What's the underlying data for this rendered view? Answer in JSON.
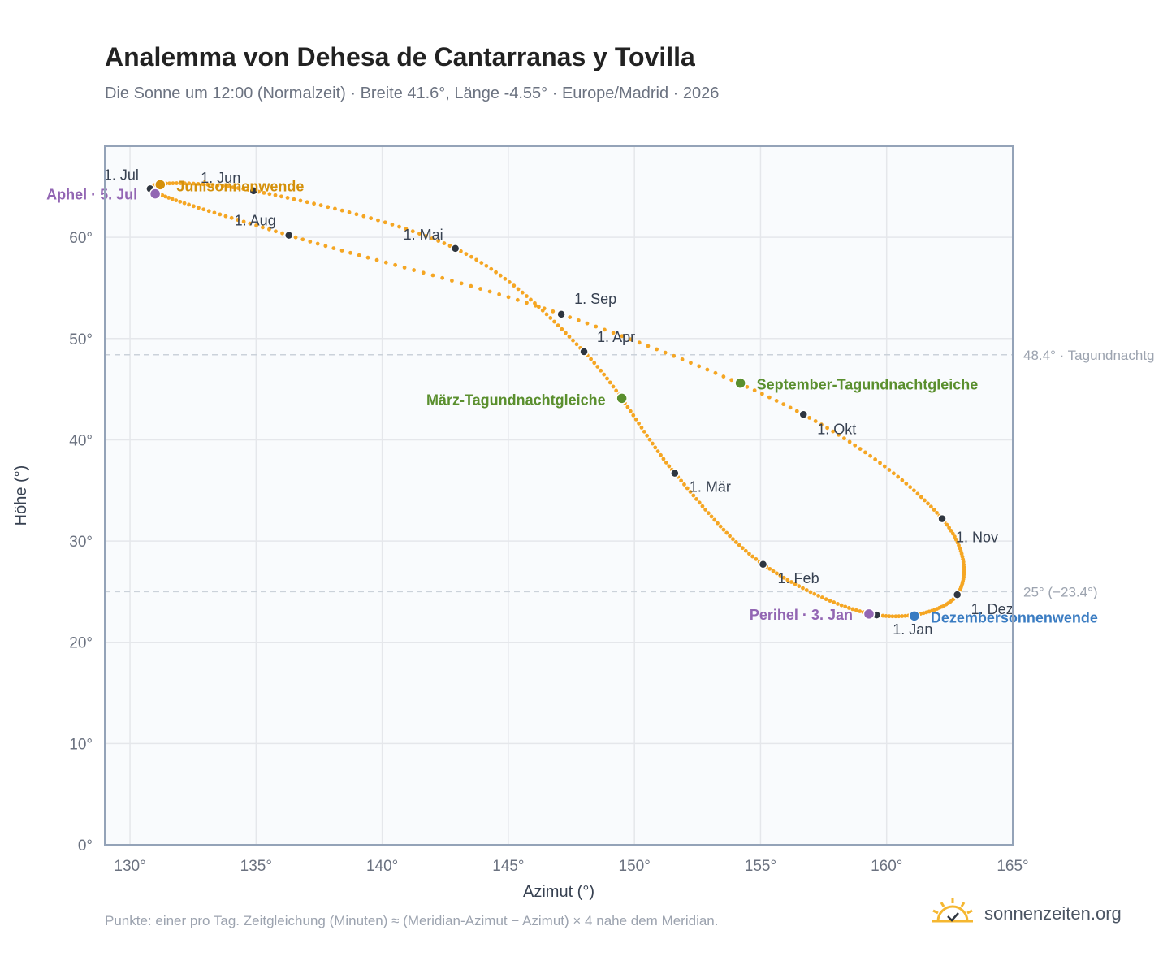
{
  "title": "Analemma von Dehesa de Cantarranas y Tovilla",
  "subtitle": "Die Sonne um 12:00 (Normalzeit) · Breite 41.6°, Länge -4.55° · Europe/Madrid · 2026",
  "footnote": "Punkte: einer pro Tag. Zeitgleichung (Minuten) ≈ (Meridian-Azimut − Azimut) × 4 nahe dem Meridian.",
  "brand": {
    "name": "sonnenzeiten.org",
    "icon": "sun-logo-icon",
    "color": "#f5b731"
  },
  "colors": {
    "curve": "#f5a623",
    "month": "#2f3640",
    "equinox": "#5a8f2e",
    "june": "#d4900a",
    "december": "#3a7cc2",
    "apsis": "#9266b3",
    "grid": "#e5e7eb",
    "reference": "#cbd2da",
    "plot_bg": "#f9fbfd"
  },
  "chart_data": {
    "type": "scatter",
    "title": "Analemma von Dehesa de Cantarranas y Tovilla",
    "xlabel": "Azimut (°)",
    "ylabel": "Höhe (°)",
    "xlim": [
      129,
      165
    ],
    "ylim": [
      0,
      69
    ],
    "xticks": [
      "130°",
      "135°",
      "140°",
      "145°",
      "150°",
      "155°",
      "160°",
      "165°"
    ],
    "yticks": [
      "0°",
      "10°",
      "20°",
      "30°",
      "40°",
      "50°",
      "60°"
    ],
    "grid": true,
    "months": [
      {
        "label": "1. Jan",
        "az": 159.6,
        "alt": 22.7
      },
      {
        "label": "1. Feb",
        "az": 155.1,
        "alt": 27.7
      },
      {
        "label": "1. Mär",
        "az": 151.6,
        "alt": 36.7
      },
      {
        "label": "1. Apr",
        "az": 148.0,
        "alt": 48.7
      },
      {
        "label": "1. Mai",
        "az": 142.9,
        "alt": 58.9
      },
      {
        "label": "1. Jun",
        "az": 134.9,
        "alt": 64.6
      },
      {
        "label": "1. Jul",
        "az": 130.8,
        "alt": 64.8
      },
      {
        "label": "1. Aug",
        "az": 136.3,
        "alt": 60.2
      },
      {
        "label": "1. Sep",
        "az": 147.1,
        "alt": 52.4
      },
      {
        "label": "1. Okt",
        "az": 156.7,
        "alt": 42.5
      },
      {
        "label": "1. Nov",
        "az": 162.2,
        "alt": 32.2
      },
      {
        "label": "1. Dez",
        "az": 162.8,
        "alt": 24.7
      }
    ],
    "events": [
      {
        "label": "Junisonnenwende",
        "az": 131.2,
        "alt": 65.2,
        "color": "#d4900a"
      },
      {
        "label": "Aphel · 5. Jul",
        "az": 131.0,
        "alt": 64.3,
        "color": "#9266b3"
      },
      {
        "label": "März-Tagundnachtgleiche",
        "az": 149.5,
        "alt": 44.1,
        "color": "#5a8f2e"
      },
      {
        "label": "September-Tagundnachtgleiche",
        "az": 154.2,
        "alt": 45.6,
        "color": "#5a8f2e"
      },
      {
        "label": "Perihel · 3. Jan",
        "az": 159.3,
        "alt": 22.8,
        "color": "#9266b3"
      },
      {
        "label": "Dezembersonnenwende",
        "az": 161.1,
        "alt": 22.6,
        "color": "#3a7cc2"
      }
    ],
    "reference_lines": [
      {
        "label": "48.4° · Tagundnachtg",
        "alt": 48.4
      },
      {
        "label": "25° (−23.4°)",
        "alt": 25.0
      }
    ]
  }
}
